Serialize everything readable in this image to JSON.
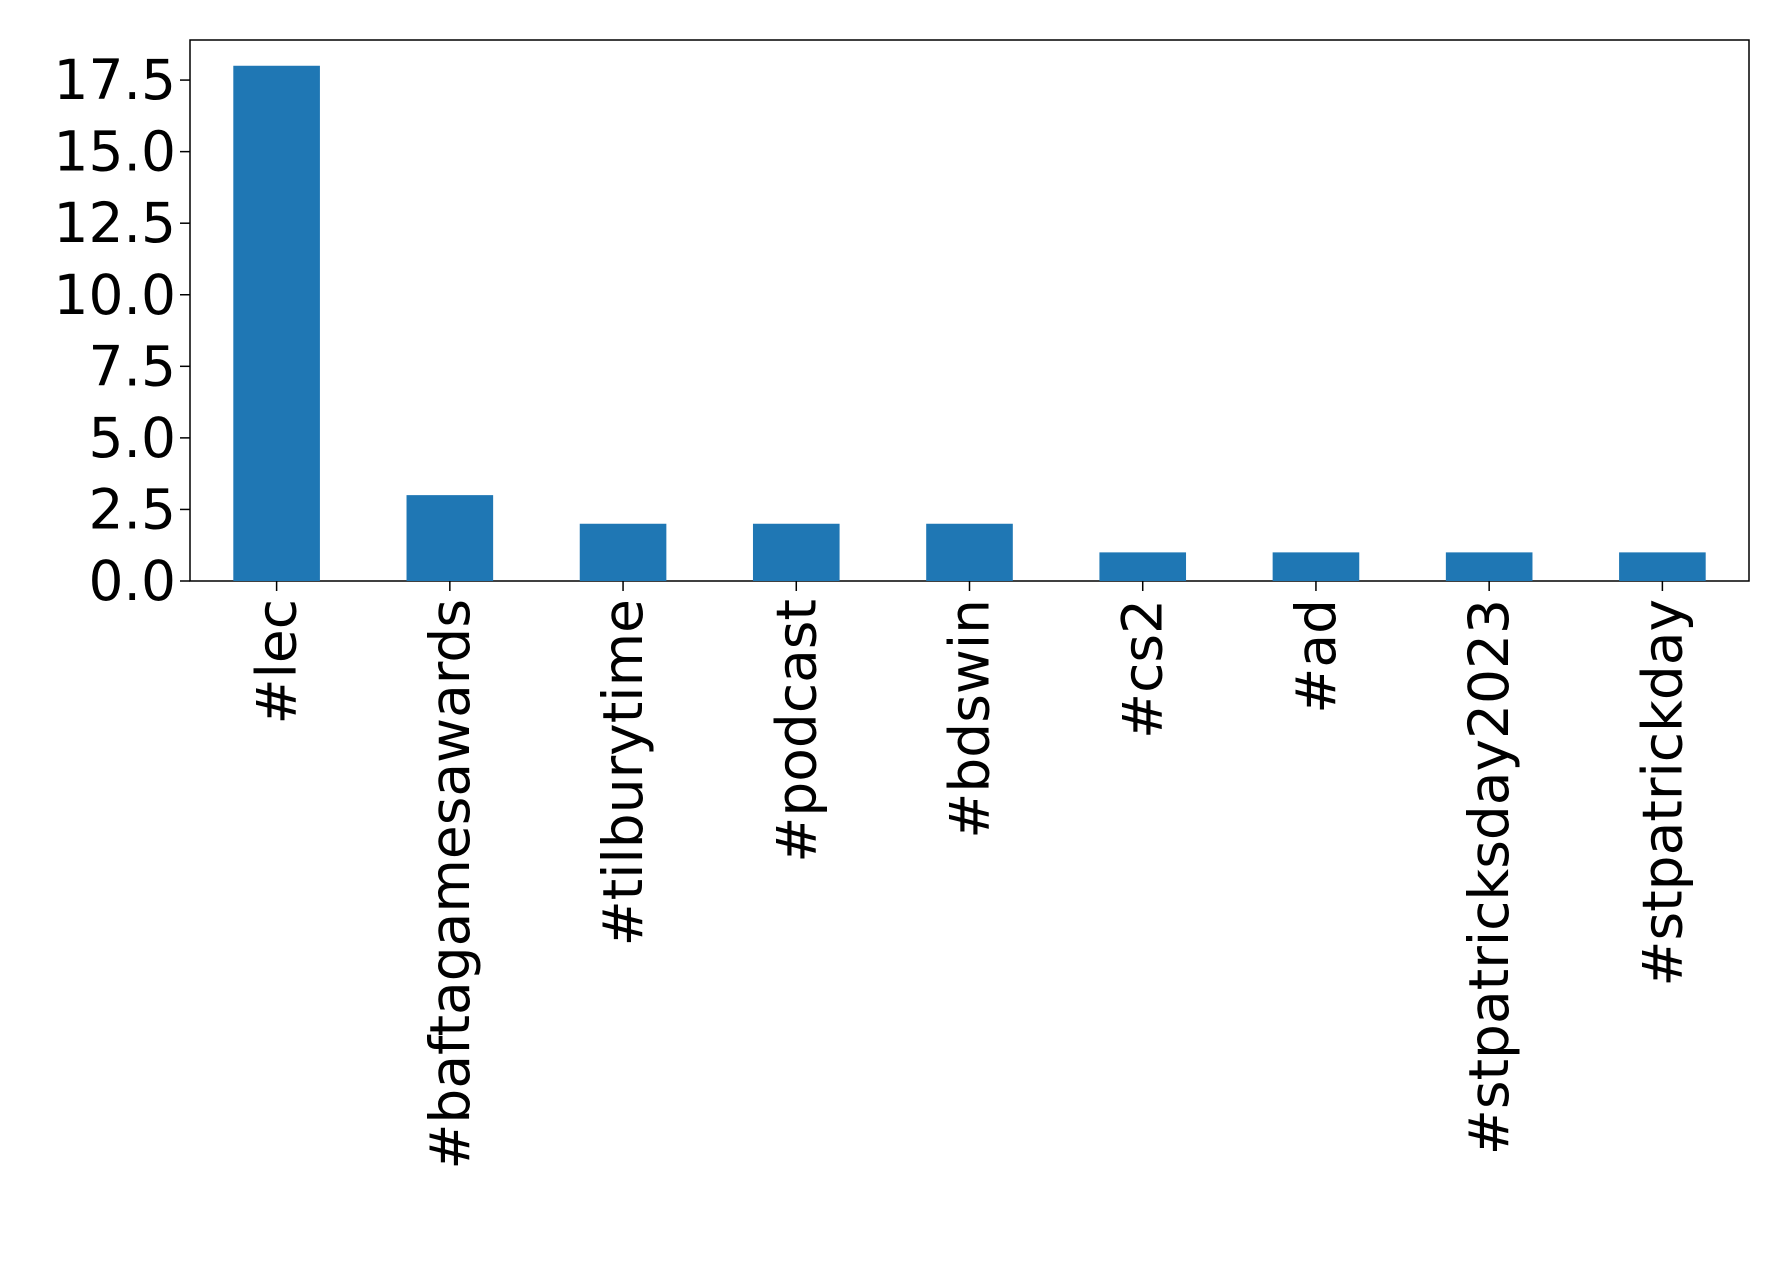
{
  "chart_data": {
    "type": "bar",
    "categories": [
      "#lec",
      "#baftagamesawards",
      "#tilburytime",
      "#podcast",
      "#bdswin",
      "#cs2",
      "#ad",
      "#stpatricksday2023",
      "#stpatrickday"
    ],
    "values": [
      18,
      3,
      2,
      2,
      2,
      1,
      1,
      1,
      1
    ],
    "color": "#1f77b4",
    "ylim": [
      0,
      18.9
    ],
    "yticks": [
      {
        "value": 0,
        "label": "0.0"
      },
      2.5,
      {
        "value": 5,
        "label": "5.0"
      },
      7.5,
      {
        "value": 10,
        "label": "10.0"
      },
      12.5,
      {
        "value": 15,
        "label": "15.0"
      },
      17.5
    ]
  }
}
